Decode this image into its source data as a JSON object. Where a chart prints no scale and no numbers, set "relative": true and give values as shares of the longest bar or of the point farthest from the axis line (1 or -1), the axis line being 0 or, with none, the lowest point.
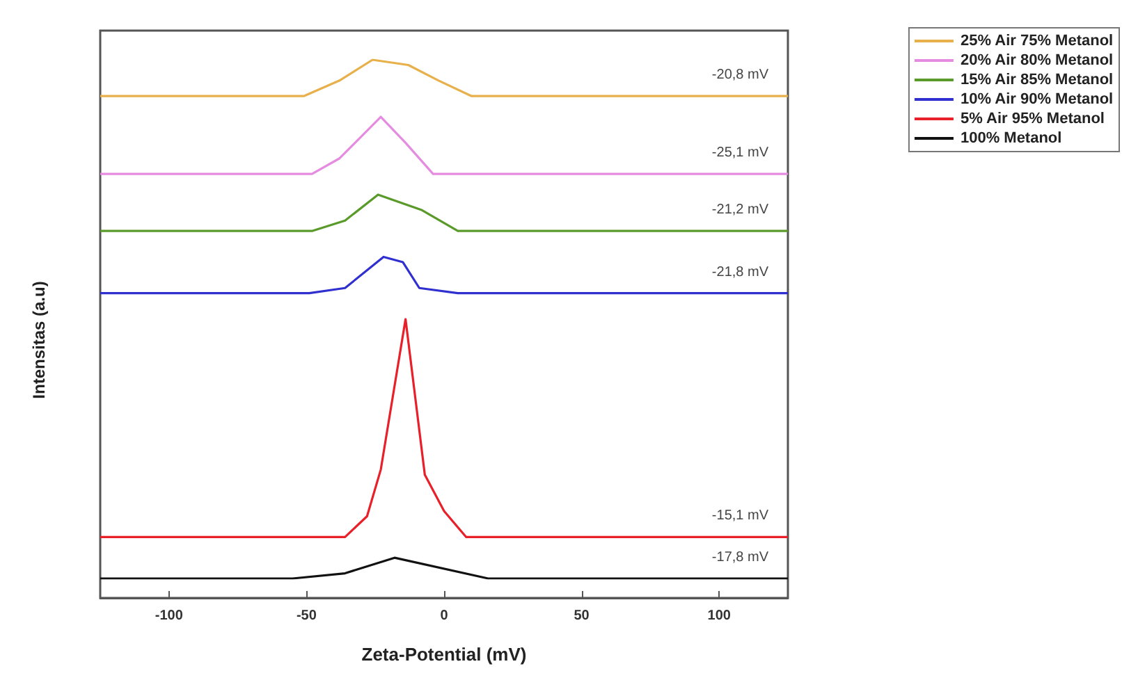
{
  "chart_data": {
    "type": "line",
    "relative": true,
    "xlabel": "Zeta-Potential (mV)",
    "ylabel": "Intensitas (a.u)",
    "xlim": [
      -125,
      125
    ],
    "xticks": [
      -100,
      -50,
      0,
      50,
      100
    ],
    "grid": false,
    "legend": "top right",
    "marker": "none",
    "line_style": "solid",
    "annotations": [
      "-20,8 mV",
      "-25,1 mV",
      "-21,2 mV",
      "-21,8 mV",
      "-15,1 mV",
      "-17,8 mV"
    ],
    "series": [
      {
        "name": "25% Air 75% Metanol",
        "color": "#e8b04a",
        "x": [
          -125,
          -51,
          -38,
          -26,
          -13,
          -2,
          10,
          125
        ],
        "values": [
          0.93,
          0.93,
          0.96,
          1,
          0.99,
          0.96,
          0.93,
          0.93
        ]
      },
      {
        "name": "20% Air 80% Metanol",
        "color": "#e58be0",
        "x": [
          -125,
          -48,
          -38,
          -23,
          -14,
          -4,
          125
        ],
        "values": [
          0.78,
          0.78,
          0.81,
          0.89,
          0.84,
          0.78,
          0.78
        ]
      },
      {
        "name": "15% Air 85% Metanol",
        "color": "#5a9a2a",
        "x": [
          -125,
          -48,
          -36,
          -24,
          -8,
          5,
          125
        ],
        "values": [
          0.67,
          0.67,
          0.69,
          0.74,
          0.71,
          0.67,
          0.67
        ]
      },
      {
        "name": "10% Air 90% Metanol",
        "color": "#3030d0",
        "x": [
          -125,
          -49,
          -36,
          -22,
          -15,
          -9,
          5,
          125
        ],
        "values": [
          0.55,
          0.55,
          0.56,
          0.62,
          0.61,
          0.56,
          0.55,
          0.55
        ]
      },
      {
        "name": "5% Air 95% Metanol",
        "color": "#e8202a",
        "x": [
          -125,
          -36,
          -28,
          -23,
          -14,
          -7,
          0,
          8,
          125
        ],
        "values": [
          0.08,
          0.08,
          0.12,
          0.21,
          0.5,
          0.2,
          0.13,
          0.08,
          0.08
        ]
      },
      {
        "name": "100% Metanol",
        "color": "#111111",
        "x": [
          -125,
          -55,
          -36,
          -18,
          16,
          125
        ],
        "values": [
          0,
          0,
          0.01,
          0.04,
          0,
          0
        ]
      }
    ]
  }
}
